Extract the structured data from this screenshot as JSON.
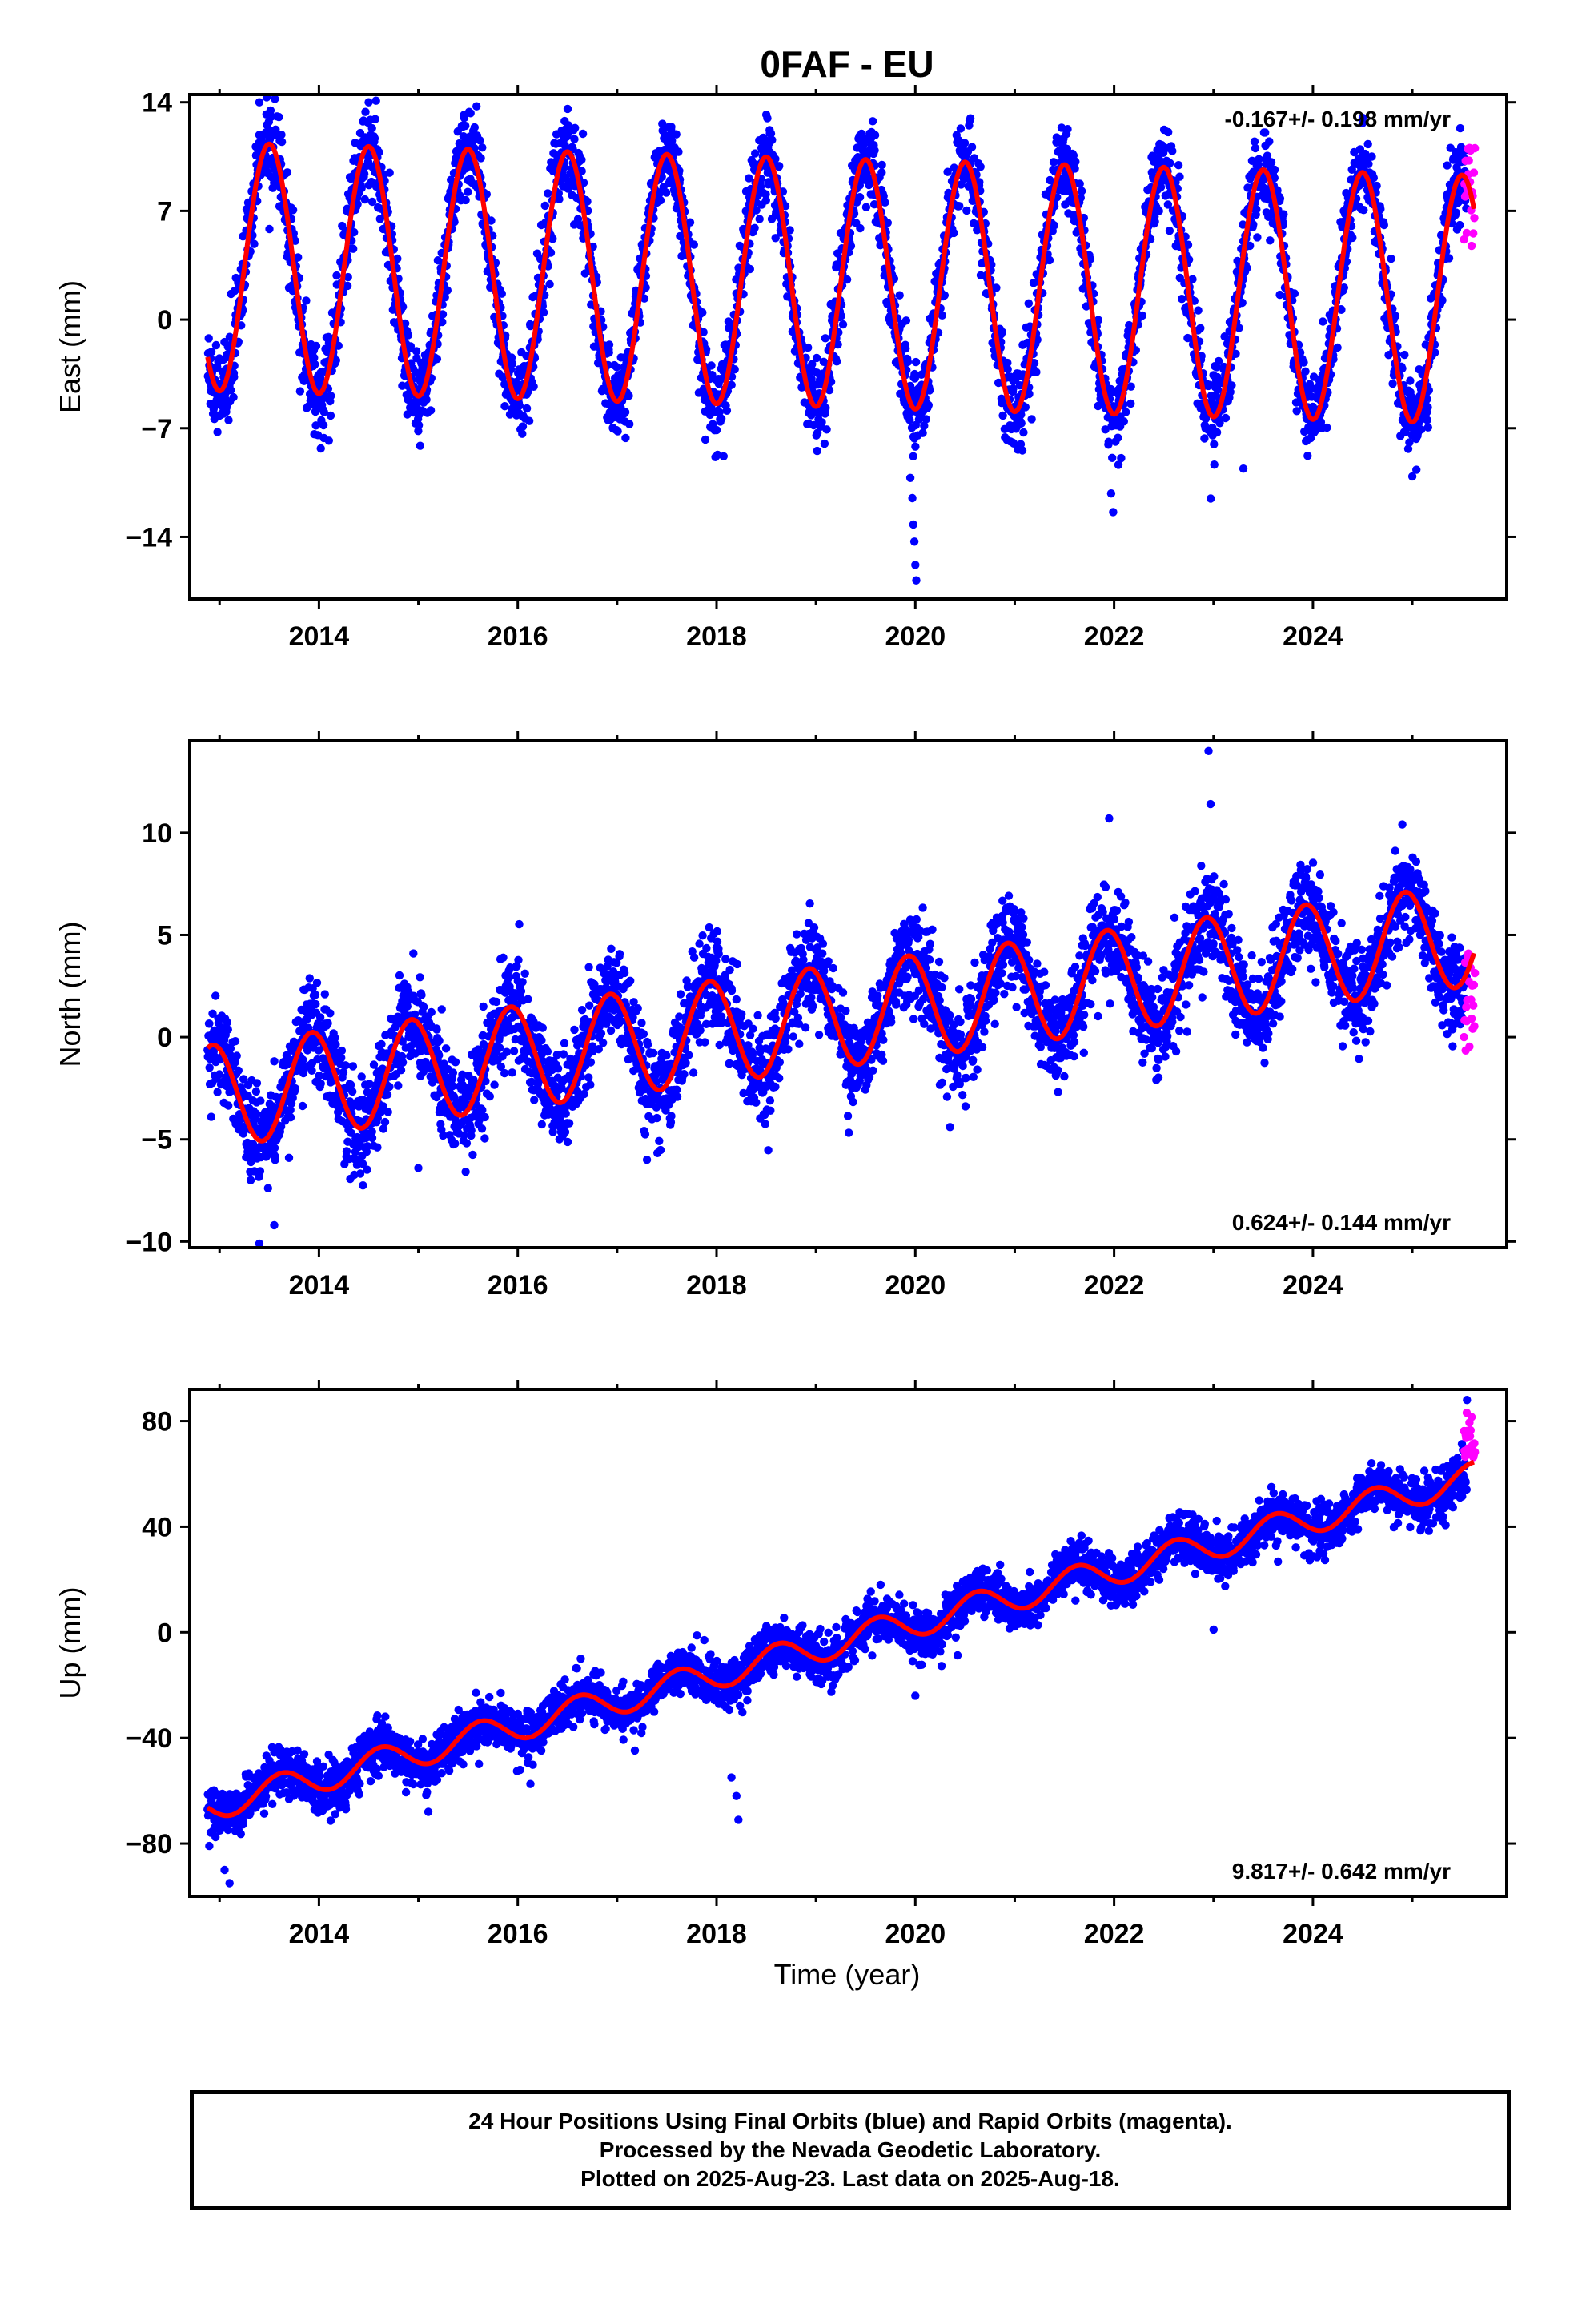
{
  "chart_data": {
    "title": "0FAF - EU",
    "type": "scatter",
    "xlabel": "Time (year)",
    "x_ticks": [
      "2014",
      "2016",
      "2018",
      "2020",
      "2022",
      "2024"
    ],
    "xlim": [
      2012.7,
      2025.95
    ],
    "colors": {
      "final": "#0000ff",
      "rapid": "#ff00ff",
      "model": "#ff0000"
    },
    "panels": [
      {
        "ylabel": "East (mm)",
        "ylim": [
          -18,
          14.5
        ],
        "y_ticks": [
          14,
          7,
          0,
          -7,
          -14
        ],
        "rate_text": "-0.167+/- 0.198 mm/yr",
        "rate_position": "top-right",
        "model": {
          "offset": 2.4,
          "trend": -0.167,
          "amplitude": 8.0,
          "peak_phase": 0.5,
          "t0": 2019.0
        },
        "scatter_sd": 1.4,
        "outliers": [
          {
            "x": 2019.95,
            "y": -10.2
          },
          {
            "x": 2019.97,
            "y": -11.5
          },
          {
            "x": 2019.98,
            "y": -13.2
          },
          {
            "x": 2019.99,
            "y": -14.3
          },
          {
            "x": 2020.0,
            "y": -15.8
          },
          {
            "x": 2020.01,
            "y": -16.8
          },
          {
            "x": 2021.97,
            "y": -11.2
          },
          {
            "x": 2021.99,
            "y": -12.4
          },
          {
            "x": 2014.1,
            "y": -7.8
          },
          {
            "x": 2023.3,
            "y": -9.6
          },
          {
            "x": 2025.0,
            "y": -10.1
          },
          {
            "x": 2013.4,
            "y": 14.0
          },
          {
            "x": 2014.5,
            "y": 14.0
          },
          {
            "x": 2018.5,
            "y": 13.2
          },
          {
            "x": 2024.5,
            "y": 13.0
          }
        ],
        "rapid_y_range": [
          4.5,
          11.5
        ]
      },
      {
        "ylabel": "North (mm)",
        "ylim": [
          -10.3,
          14.5
        ],
        "y_ticks": [
          10,
          5,
          0,
          -5,
          -10
        ],
        "rate_text": "0.624+/- 0.144 mm/yr",
        "rate_position": "bottom-right",
        "model": {
          "offset": 0.9,
          "trend": 0.624,
          "amplitude": 2.5,
          "peak_phase": 0.93,
          "t0": 2019.0
        },
        "scatter_sd": 1.2,
        "outliers": [
          {
            "x": 2022.95,
            "y": 14.0
          },
          {
            "x": 2022.97,
            "y": 11.4
          },
          {
            "x": 2021.95,
            "y": 10.7
          },
          {
            "x": 2013.4,
            "y": -10.1
          },
          {
            "x": 2013.55,
            "y": -9.2
          },
          {
            "x": 2024.9,
            "y": 10.4
          },
          {
            "x": 2015.0,
            "y": -6.4
          },
          {
            "x": 2017.3,
            "y": -6.0
          }
        ],
        "rapid_y_range": [
          -1.2,
          4.2
        ]
      },
      {
        "ylabel": "Up (mm)",
        "ylim": [
          -100,
          92
        ],
        "y_ticks": [
          80,
          40,
          0,
          -40,
          -80
        ],
        "rate_text": "9.817+/- 0.642 mm/yr",
        "rate_position": "bottom-right",
        "model": {
          "offset": -6,
          "trend": 9.817,
          "amplitude": 5.5,
          "peak_phase": 0.62,
          "t0": 2019.0
        },
        "scatter_sd": 4.5,
        "outliers": [
          {
            "x": 2013.1,
            "y": -95
          },
          {
            "x": 2013.05,
            "y": -90
          },
          {
            "x": 2018.22,
            "y": -71
          },
          {
            "x": 2018.2,
            "y": -62
          },
          {
            "x": 2018.15,
            "y": -55
          },
          {
            "x": 2020.0,
            "y": -24
          },
          {
            "x": 2023.0,
            "y": 1
          },
          {
            "x": 2015.1,
            "y": -68
          },
          {
            "x": 2025.55,
            "y": 88
          }
        ],
        "rapid_y_range": [
          66,
          84
        ]
      }
    ]
  },
  "footer": {
    "line1": "24 Hour Positions Using Final Orbits (blue) and Rapid Orbits (magenta).",
    "line2": "Processed by the Nevada Geodetic Laboratory.",
    "line3": "Plotted on 2025-Aug-23. Last data on 2025-Aug-18."
  }
}
